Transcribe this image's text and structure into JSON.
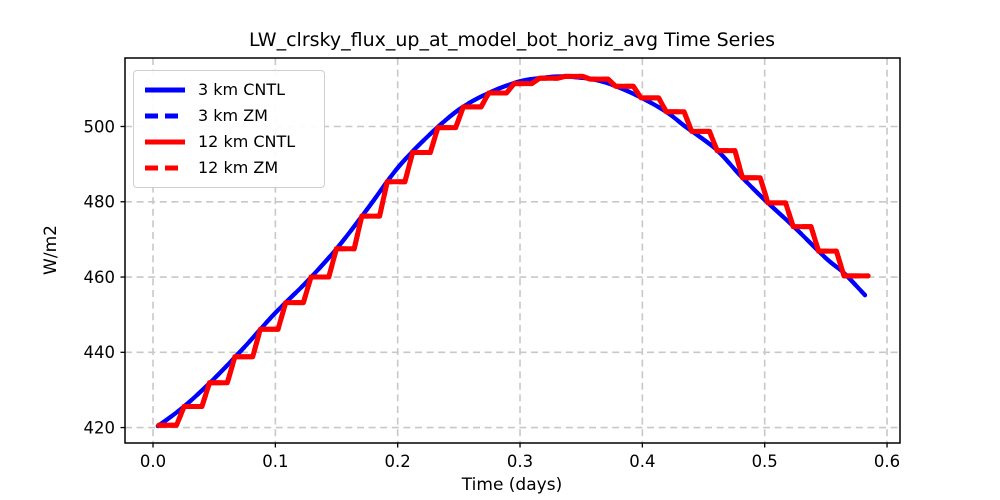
{
  "chart_data": {
    "type": "line",
    "title": "LW_clrsky_flux_up_at_model_bot_horiz_avg Time Series",
    "xlabel": "Time (days)",
    "ylabel": "W/m2",
    "xlim": [
      -0.0229,
      0.6106
    ],
    "ylim": [
      415.9,
      518.2
    ],
    "grid": true,
    "grid_color": "#c8c8c8",
    "legend_position": "upper left",
    "xticks": [
      {
        "value": 0.0,
        "label": "0.0"
      },
      {
        "value": 0.1,
        "label": "0.1"
      },
      {
        "value": 0.2,
        "label": "0.2"
      },
      {
        "value": 0.3,
        "label": "0.3"
      },
      {
        "value": 0.4,
        "label": "0.4"
      },
      {
        "value": 0.5,
        "label": "0.5"
      },
      {
        "value": 0.6,
        "label": "0.6"
      }
    ],
    "yticks": [
      {
        "value": 420,
        "label": "420"
      },
      {
        "value": 440,
        "label": "440"
      },
      {
        "value": 460,
        "label": "460"
      },
      {
        "value": 480,
        "label": "480"
      },
      {
        "value": 500,
        "label": "500"
      }
    ],
    "series": [
      {
        "name": "3 km CNTL",
        "color": "#0000ff",
        "line_style": "solid",
        "line_width": 4.2,
        "x": [
          0.004,
          0.025,
          0.05,
          0.075,
          0.1,
          0.125,
          0.15,
          0.175,
          0.2,
          0.225,
          0.25,
          0.275,
          0.3,
          0.32,
          0.335,
          0.36,
          0.38,
          0.4,
          0.42,
          0.435,
          0.46,
          0.48,
          0.5,
          0.525,
          0.55,
          0.565,
          0.582
        ],
        "y": [
          420.4,
          425.5,
          433.0,
          441.5,
          450.5,
          458.5,
          467.5,
          478.0,
          489.0,
          497.5,
          504.5,
          509.0,
          512.0,
          513.0,
          513.3,
          512.5,
          510.5,
          507.5,
          503.8,
          500.0,
          494.0,
          487.0,
          480.5,
          473.0,
          465.0,
          461.0,
          455.2
        ]
      },
      {
        "name": "3 km ZM",
        "color": "#0000ff",
        "line_style": "dashed",
        "line_width": 4.2,
        "coincident_with": "3 km CNTL"
      },
      {
        "name": "12 km CNTL",
        "color": "#ff0000",
        "line_style": "solid",
        "line_width": 5,
        "step": {
          "t_start": 0.0047,
          "dt": 0.020745,
          "flat_fraction": 0.7,
          "t_end": 0.5845
        },
        "values": [
          420.6,
          425.6,
          431.9,
          438.8,
          446.1,
          453.2,
          460.0,
          467.5,
          476.2,
          485.3,
          493.1,
          499.7,
          505.2,
          508.9,
          511.4,
          512.8,
          513.3,
          512.6,
          510.7,
          507.6,
          503.9,
          498.7,
          493.6,
          486.4,
          479.7,
          473.4,
          466.9,
          460.3
        ]
      },
      {
        "name": "12 km ZM",
        "color": "#ff0000",
        "line_style": "dashed",
        "line_width": 5,
        "coincident_with": "12 km CNTL"
      }
    ]
  }
}
